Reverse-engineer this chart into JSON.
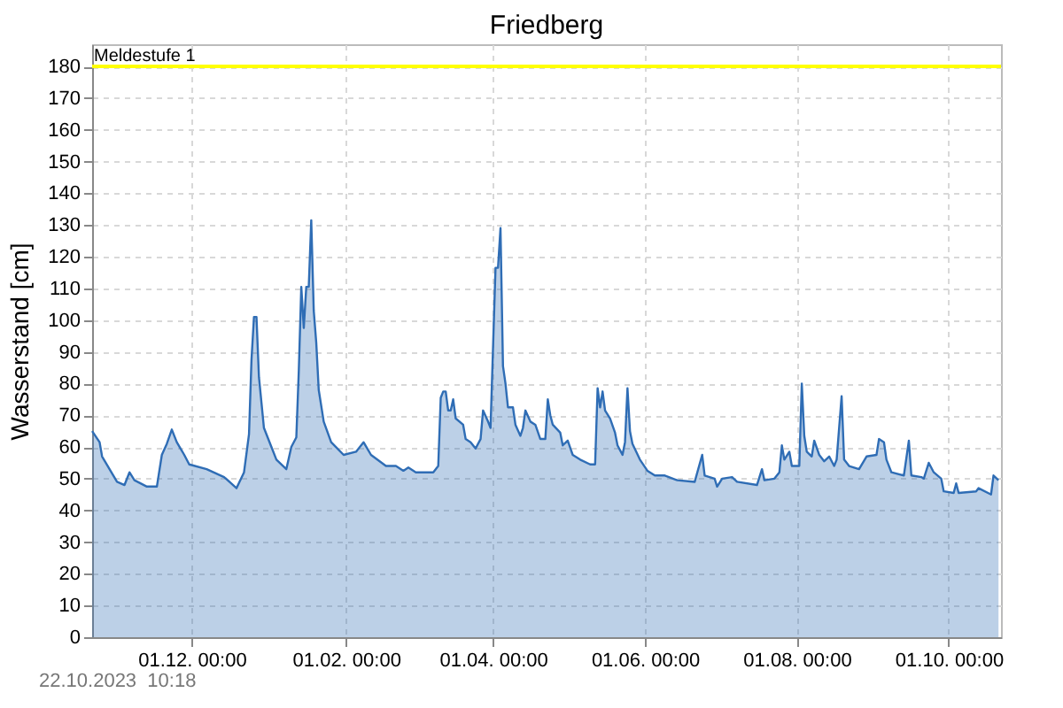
{
  "chart_data": {
    "type": "area",
    "title": "Friedberg",
    "ylabel": "Wasserstand [cm]",
    "x": [
      "2022-10-22",
      "2022-10-25",
      "2022-10-26",
      "2022-10-29",
      "2022-11-01",
      "2022-11-04",
      "2022-11-06",
      "2022-11-08",
      "2022-11-13",
      "2022-11-17",
      "2022-11-19",
      "2022-11-21",
      "2022-11-23",
      "2022-11-25",
      "2022-11-28",
      "2022-11-30",
      "2022-12-07",
      "2022-12-14",
      "2022-12-19",
      "2022-12-22",
      "2022-12-24",
      "2022-12-25",
      "2022-12-26",
      "2022-12-27",
      "2022-12-28",
      "2022-12-29",
      "2022-12-30",
      "2023-01-02",
      "2023-01-04",
      "2023-01-08",
      "2023-01-10",
      "2023-01-12",
      "2023-01-13",
      "2023-01-14",
      "2023-01-15",
      "2023-01-16",
      "2023-01-17",
      "2023-01-18",
      "2023-01-19",
      "2023-01-20",
      "2023-01-21",
      "2023-01-23",
      "2023-01-26",
      "2023-01-31",
      "2023-02-05",
      "2023-02-08",
      "2023-02-11",
      "2023-02-17",
      "2023-02-21",
      "2023-02-24",
      "2023-02-26",
      "2023-03-01",
      "2023-03-08",
      "2023-03-10",
      "2023-03-11",
      "2023-03-12",
      "2023-03-13",
      "2023-03-14",
      "2023-03-15",
      "2023-03-16",
      "2023-03-17",
      "2023-03-20",
      "2023-03-21",
      "2023-03-23",
      "2023-03-25",
      "2023-03-27",
      "2023-03-28",
      "2023-03-30",
      "2023-03-31",
      "2023-04-02",
      "2023-04-03",
      "2023-04-04",
      "2023-04-05",
      "2023-04-06",
      "2023-04-07",
      "2023-04-09",
      "2023-04-10",
      "2023-04-12",
      "2023-04-13",
      "2023-04-14",
      "2023-04-16",
      "2023-04-18",
      "2023-04-20",
      "2023-04-22",
      "2023-04-23",
      "2023-04-24",
      "2023-04-25",
      "2023-04-28",
      "2023-04-29",
      "2023-05-01",
      "2023-05-03",
      "2023-05-06",
      "2023-05-10",
      "2023-05-12",
      "2023-05-13",
      "2023-05-14",
      "2023-05-15",
      "2023-05-16",
      "2023-05-18",
      "2023-05-20",
      "2023-05-21",
      "2023-05-23",
      "2023-05-24",
      "2023-05-25",
      "2023-05-26",
      "2023-05-27",
      "2023-05-30",
      "2023-06-02",
      "2023-06-05",
      "2023-06-09",
      "2023-06-14",
      "2023-06-21",
      "2023-06-24",
      "2023-06-25",
      "2023-06-29",
      "2023-06-30",
      "2023-07-02",
      "2023-07-06",
      "2023-07-08",
      "2023-07-16",
      "2023-07-18",
      "2023-07-19",
      "2023-07-23",
      "2023-07-25",
      "2023-07-26",
      "2023-07-27",
      "2023-07-29",
      "2023-07-30",
      "2023-08-02",
      "2023-08-03",
      "2023-08-04",
      "2023-08-05",
      "2023-08-07",
      "2023-08-08",
      "2023-08-10",
      "2023-08-12",
      "2023-08-14",
      "2023-08-16",
      "2023-08-17",
      "2023-08-19",
      "2023-08-20",
      "2023-08-22",
      "2023-08-26",
      "2023-08-29",
      "2023-09-02",
      "2023-09-03",
      "2023-09-05",
      "2023-09-06",
      "2023-09-08",
      "2023-09-13",
      "2023-09-15",
      "2023-09-16",
      "2023-09-20",
      "2023-09-21",
      "2023-09-23",
      "2023-09-25",
      "2023-09-28",
      "2023-09-29",
      "2023-10-03",
      "2023-10-04",
      "2023-10-05",
      "2023-10-12",
      "2023-10-13",
      "2023-10-18",
      "2023-10-19",
      "2023-10-21"
    ],
    "series": [
      {
        "color": "#2f6db5",
        "values": [
          65,
          61.5,
          57,
          53,
          49,
          48,
          52,
          49.5,
          47.5,
          47.5,
          57.5,
          61,
          65.5,
          61.5,
          57.5,
          54.5,
          53,
          50.5,
          47,
          52,
          64,
          87.5,
          101,
          101,
          82,
          74,
          66,
          60,
          56,
          53,
          60,
          63,
          84,
          110.5,
          97.5,
          110.5,
          110.5,
          131.5,
          103,
          93,
          78,
          68,
          61.5,
          57.5,
          58.5,
          61.5,
          57.5,
          54,
          54,
          52.5,
          53.5,
          52,
          52,
          54,
          75.5,
          77.5,
          77.5,
          71.5,
          71.5,
          75,
          69,
          67,
          62.5,
          61.5,
          59.5,
          62.5,
          71.5,
          68,
          66,
          116.5,
          116.5,
          129,
          85.5,
          80,
          72.5,
          72.5,
          67,
          63.5,
          66,
          71.5,
          68,
          67,
          62.5,
          62.5,
          75,
          70,
          67,
          64.5,
          60.5,
          62,
          57.5,
          56,
          54.5,
          54.5,
          78.5,
          72.5,
          77.5,
          71.5,
          69,
          64.5,
          60.5,
          57.5,
          61.5,
          78.5,
          65,
          61,
          56,
          52.5,
          51,
          51,
          49.5,
          49,
          57.5,
          51,
          50,
          47.5,
          50,
          50.5,
          49,
          48,
          53,
          49.5,
          50,
          52,
          60.5,
          56,
          58.5,
          54,
          54,
          80,
          63.5,
          58.5,
          57,
          62,
          57.5,
          55.5,
          57,
          54,
          56,
          76,
          56,
          54,
          53,
          57,
          57.5,
          62.5,
          61.5,
          56,
          52,
          51,
          62,
          51,
          50.5,
          50,
          55,
          52,
          50,
          46,
          45.5,
          48.5,
          45.5,
          46,
          47,
          45,
          51,
          49.5
        ]
      }
    ],
    "xlim": [
      "2022-10-22",
      "2023-10-22"
    ],
    "xticks": [
      {
        "value": "2022-12-01",
        "label": "01.12. 00:00"
      },
      {
        "value": "2023-02-01",
        "label": "01.02. 00:00"
      },
      {
        "value": "2023-04-01",
        "label": "01.04. 00:00"
      },
      {
        "value": "2023-06-01",
        "label": "01.06. 00:00"
      },
      {
        "value": "2023-08-01",
        "label": "01.08. 00:00"
      },
      {
        "value": "2023-10-01",
        "label": "01.10. 00:00"
      }
    ],
    "ylim": [
      0,
      187
    ],
    "yticks": [
      0,
      10,
      20,
      30,
      40,
      50,
      60,
      70,
      80,
      90,
      100,
      110,
      120,
      130,
      140,
      150,
      160,
      170,
      180
    ],
    "ref_lines": [
      {
        "axis": "y",
        "value": 180,
        "label": "Meldestufe 1",
        "color": "#ffff00"
      }
    ],
    "grid": true,
    "annotations": [
      "22.10.2023  10:18"
    ]
  }
}
